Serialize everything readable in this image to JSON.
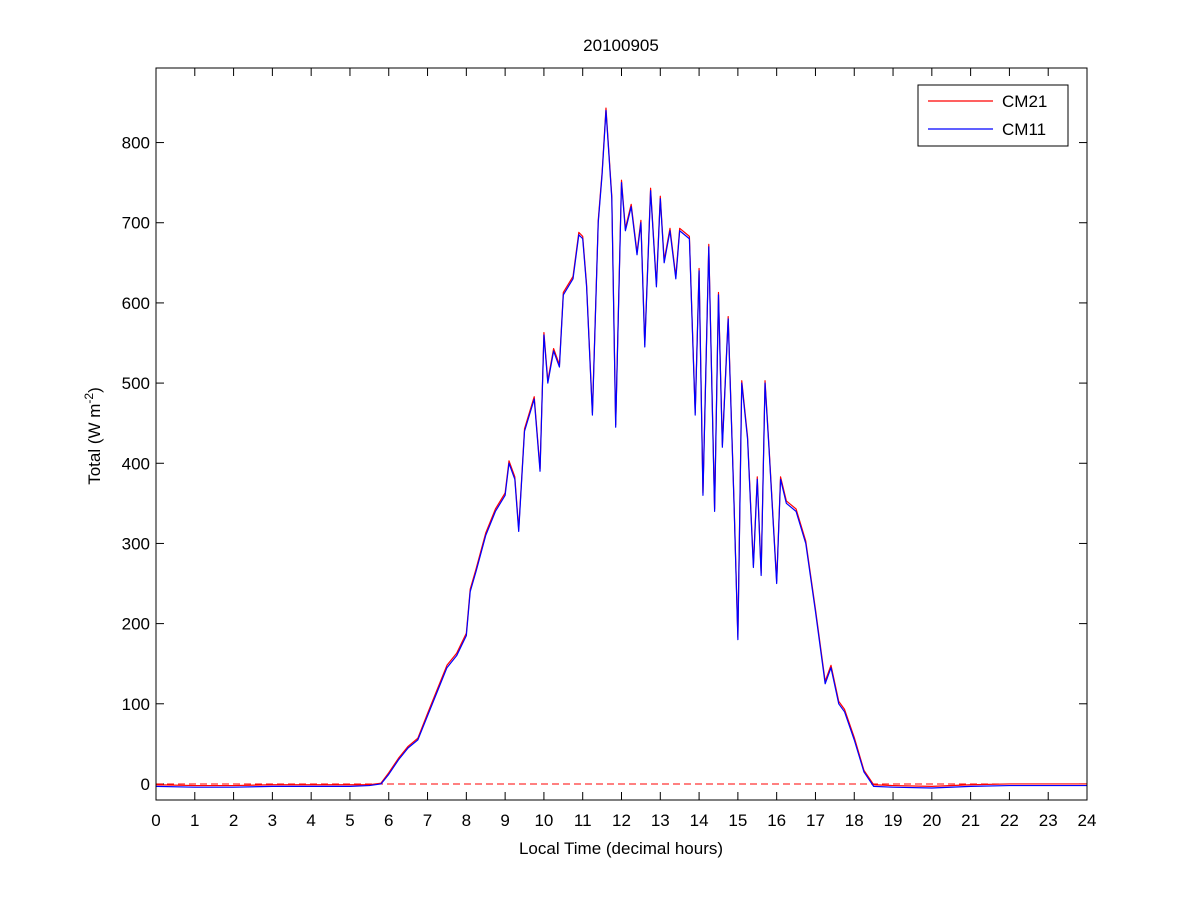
{
  "chart_data": {
    "type": "line",
    "title": "20100905",
    "xlabel": "Local Time (decimal hours)",
    "ylabel": {
      "text": "Total (W m",
      "superscript": "-2",
      "suffix": ")"
    },
    "x": [
      0,
      1,
      2,
      3,
      4,
      5,
      5.5,
      5.8,
      6,
      6.25,
      6.5,
      6.75,
      7,
      7.25,
      7.5,
      7.75,
      8,
      8.1,
      8.25,
      8.5,
      8.75,
      9,
      9.1,
      9.25,
      9.35,
      9.5,
      9.75,
      9.9,
      10,
      10.1,
      10.25,
      10.4,
      10.5,
      10.75,
      10.9,
      11,
      11.1,
      11.25,
      11.4,
      11.5,
      11.6,
      11.75,
      11.85,
      12,
      12.1,
      12.25,
      12.4,
      12.5,
      12.6,
      12.75,
      12.9,
      13,
      13.1,
      13.25,
      13.4,
      13.5,
      13.75,
      13.9,
      14,
      14.1,
      14.25,
      14.4,
      14.5,
      14.6,
      14.75,
      14.9,
      15,
      15.1,
      15.25,
      15.4,
      15.5,
      15.6,
      15.7,
      15.8,
      16,
      16.1,
      16.25,
      16.5,
      16.75,
      17,
      17.25,
      17.4,
      17.6,
      17.75,
      18,
      18.25,
      18.5,
      19,
      20,
      21,
      22,
      23,
      24
    ],
    "series": [
      {
        "name": "CM21",
        "color": "#ff0000",
        "values": [
          -1,
          -2,
          -2,
          -1,
          -1,
          -1,
          -1,
          1,
          14,
          32,
          47,
          57,
          88,
          118,
          148,
          163,
          188,
          243,
          268,
          313,
          343,
          363,
          403,
          383,
          318,
          443,
          483,
          393,
          563,
          503,
          543,
          523,
          613,
          633,
          688,
          683,
          623,
          463,
          703,
          763,
          843,
          733,
          448,
          753,
          693,
          723,
          663,
          703,
          548,
          743,
          623,
          733,
          653,
          693,
          633,
          693,
          683,
          463,
          643,
          363,
          673,
          343,
          613,
          423,
          583,
          353,
          183,
          503,
          433,
          273,
          383,
          263,
          503,
          423,
          253,
          383,
          353,
          343,
          303,
          218,
          128,
          148,
          103,
          93,
          58,
          17,
          -1,
          -2,
          -3,
          -1,
          0,
          0,
          0
        ]
      },
      {
        "name": "CM11",
        "color": "#0000ff",
        "values": [
          -3,
          -4,
          -4,
          -3,
          -3,
          -3,
          -2,
          0,
          12,
          30,
          45,
          55,
          85,
          115,
          145,
          160,
          185,
          240,
          265,
          310,
          340,
          360,
          400,
          380,
          315,
          440,
          480,
          390,
          560,
          500,
          540,
          520,
          610,
          630,
          685,
          680,
          620,
          460,
          700,
          760,
          840,
          730,
          445,
          750,
          690,
          720,
          660,
          700,
          545,
          740,
          620,
          730,
          650,
          690,
          630,
          690,
          680,
          460,
          640,
          360,
          670,
          340,
          610,
          420,
          580,
          350,
          180,
          500,
          430,
          270,
          380,
          260,
          500,
          420,
          250,
          380,
          350,
          340,
          300,
          215,
          125,
          145,
          100,
          90,
          55,
          15,
          -3,
          -4,
          -5,
          -3,
          -2,
          -2,
          -2
        ]
      }
    ],
    "reference_line": {
      "value": 0,
      "color": "#ff0000"
    },
    "xlim": [
      0,
      24
    ],
    "xticks": [
      0,
      1,
      2,
      3,
      4,
      5,
      6,
      7,
      8,
      9,
      10,
      11,
      12,
      13,
      14,
      15,
      16,
      17,
      18,
      19,
      20,
      21,
      22,
      23,
      24
    ],
    "ylim": [
      -20,
      893
    ],
    "yticks": [
      0,
      100,
      200,
      300,
      400,
      500,
      600,
      700,
      800
    ],
    "legend": "upper right"
  }
}
